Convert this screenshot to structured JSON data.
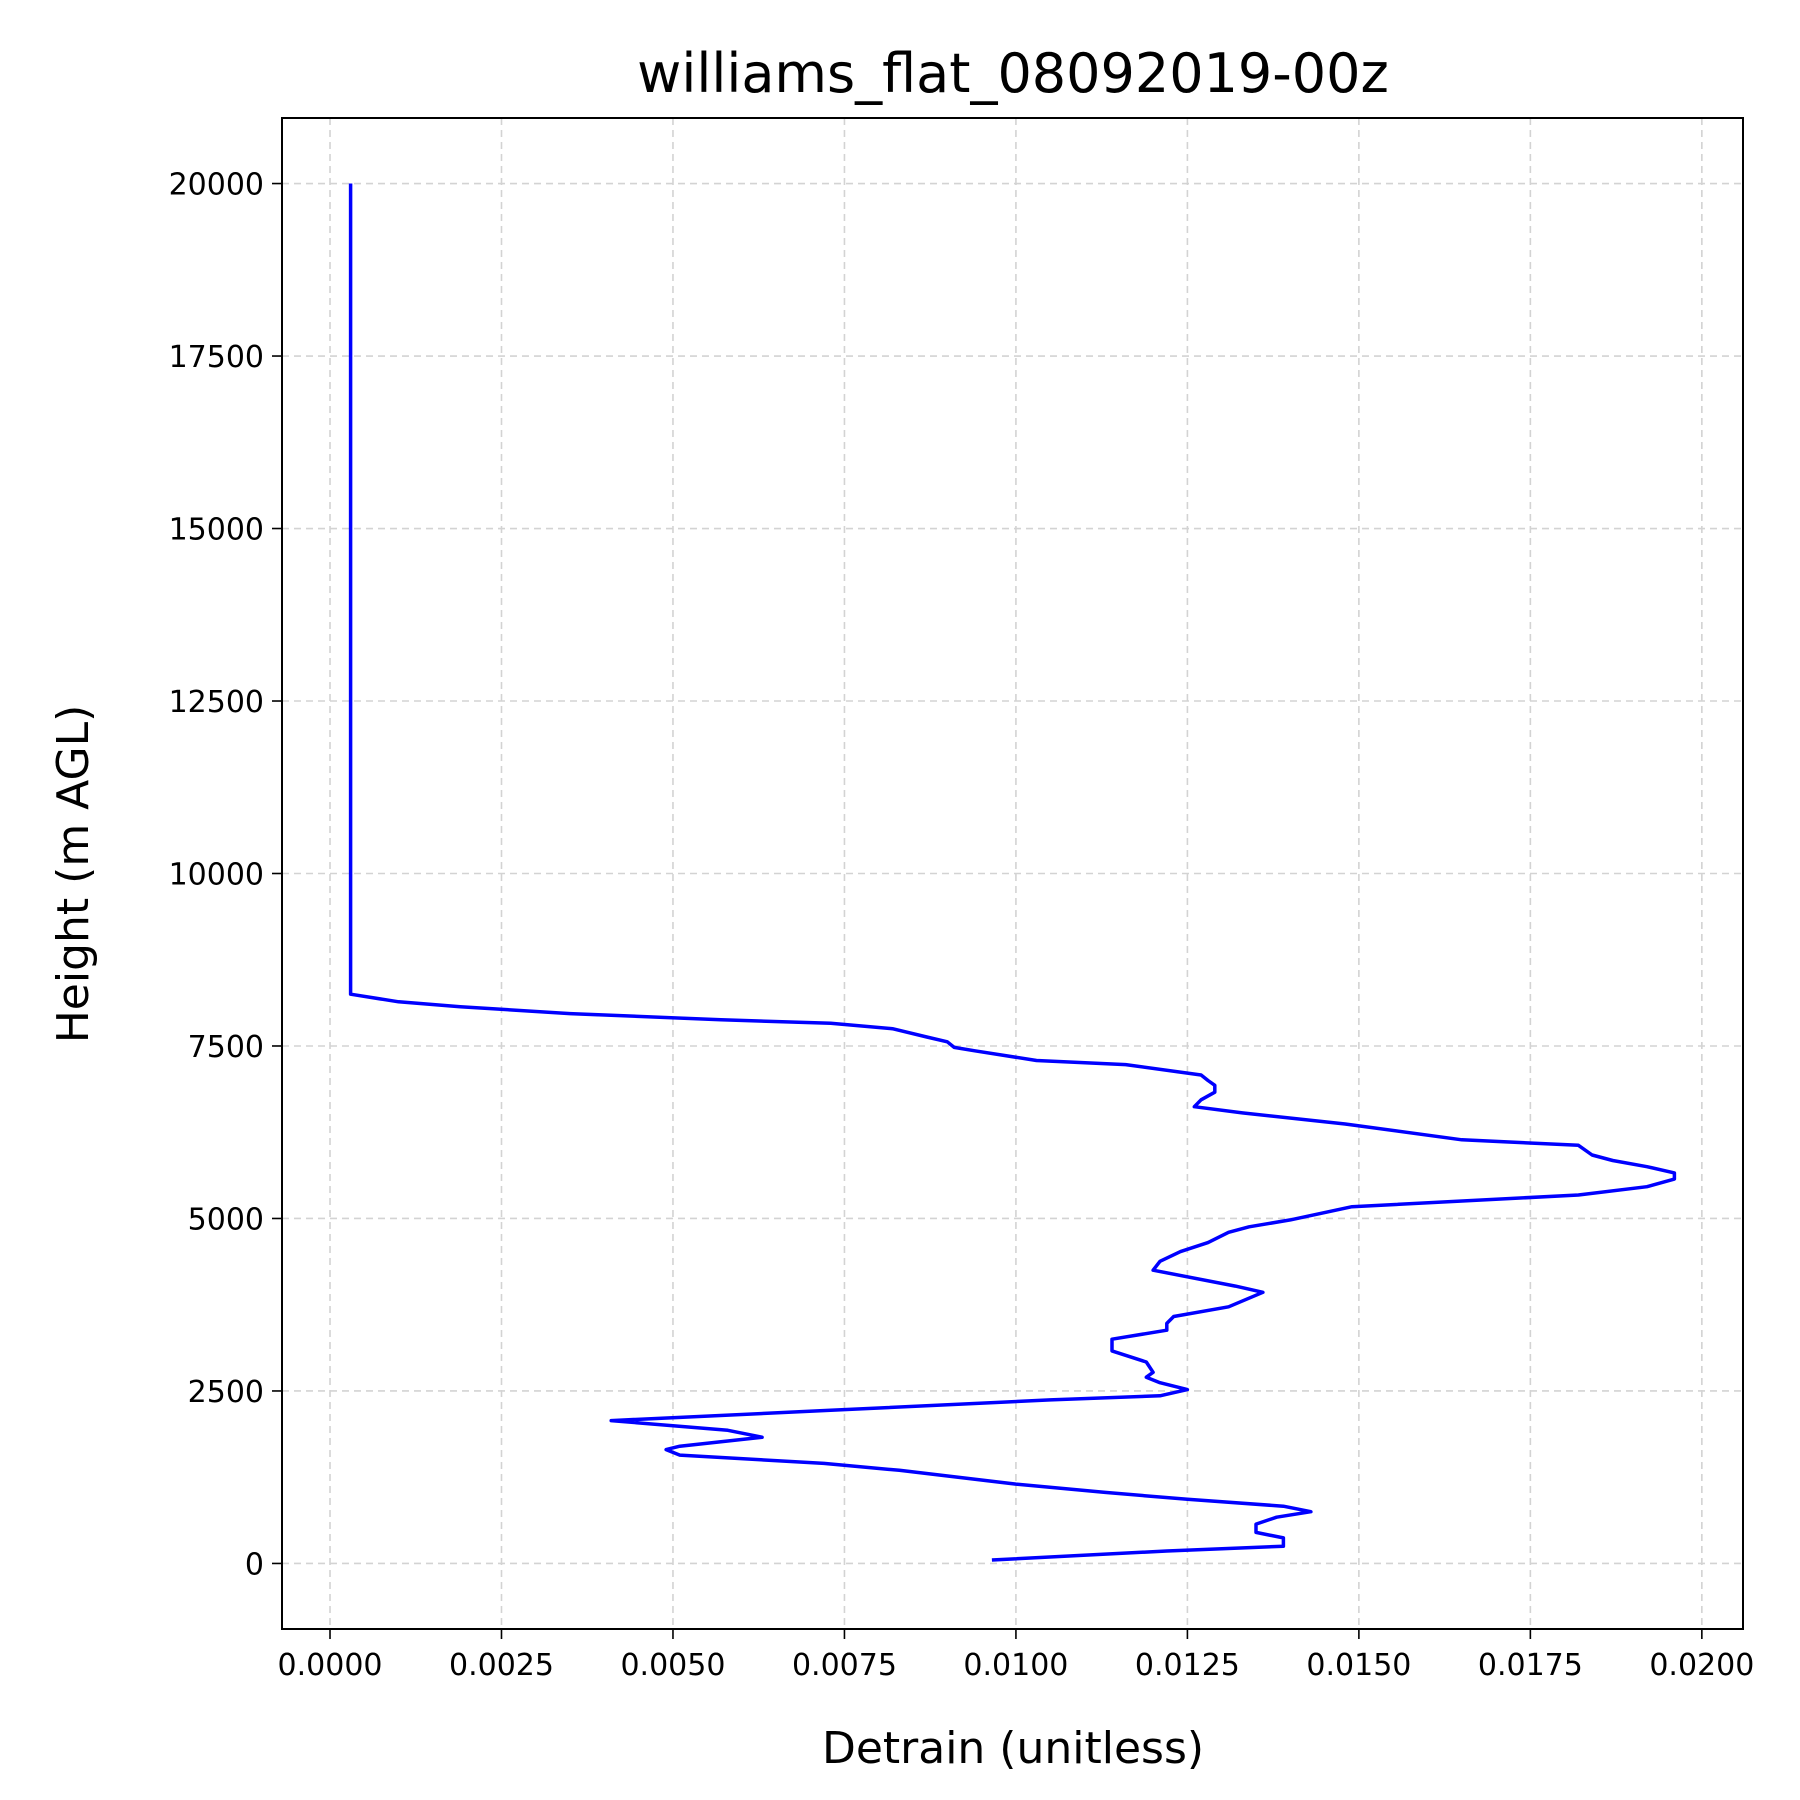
{
  "chart_data": {
    "type": "line",
    "title": "williams_flat_08092019-00z",
    "xlabel": "Detrain (unitless)",
    "ylabel": "Height (m AGL)",
    "xlim": [
      -0.0007,
      0.0206
    ],
    "ylim": [
      -950,
      20950
    ],
    "xticks": [
      0.0,
      0.0025,
      0.005,
      0.0075,
      0.01,
      0.0125,
      0.015,
      0.0175,
      0.02
    ],
    "xtick_labels": [
      "0.0000",
      "0.0025",
      "0.0050",
      "0.0075",
      "0.0100",
      "0.0125",
      "0.0150",
      "0.0175",
      "0.0200"
    ],
    "yticks": [
      0,
      2500,
      5000,
      7500,
      10000,
      12500,
      15000,
      17500,
      20000
    ],
    "ytick_labels": [
      "0",
      "2500",
      "5000",
      "7500",
      "10000",
      "12500",
      "15000",
      "17500",
      "20000"
    ],
    "grid": true,
    "color": "#0000ff",
    "series": [
      {
        "x": [
          0.00965,
          0.0122,
          0.0139,
          0.0139,
          0.0135,
          0.0135,
          0.0138,
          0.0143,
          0.0139,
          0.0125,
          0.0113,
          0.01,
          0.0083,
          0.0072,
          0.0051,
          0.0049,
          0.0051,
          0.0063,
          0.0058,
          0.0041,
          0.0073,
          0.0105,
          0.0121,
          0.0125,
          0.0121,
          0.0119,
          0.012,
          0.0119,
          0.0114,
          0.0114,
          0.0122,
          0.0122,
          0.0123,
          0.0131,
          0.0136,
          0.0132,
          0.012,
          0.0121,
          0.0124,
          0.0128,
          0.0131,
          0.0134,
          0.014,
          0.0149,
          0.0182,
          0.0192,
          0.0196,
          0.0196,
          0.0192,
          0.0187,
          0.0184,
          0.0182,
          0.0165,
          0.0148,
          0.0133,
          0.0126,
          0.0127,
          0.0129,
          0.0129,
          0.0128,
          0.0127,
          0.0116,
          0.0103,
          0.0094,
          0.0091,
          0.009,
          0.0087,
          0.0082,
          0.0073,
          0.0057,
          0.0035,
          0.0019,
          0.001,
          0.0003,
          0.0003,
          0.0003
        ],
        "y": [
          50,
          180,
          250,
          370,
          450,
          570,
          670,
          750,
          830,
          930,
          1030,
          1150,
          1350,
          1450,
          1570,
          1650,
          1700,
          1830,
          1930,
          2070,
          2220,
          2370,
          2430,
          2520,
          2620,
          2700,
          2770,
          2920,
          3080,
          3250,
          3380,
          3480,
          3580,
          3720,
          3930,
          4020,
          4250,
          4380,
          4520,
          4650,
          4800,
          4880,
          4980,
          5170,
          5340,
          5460,
          5570,
          5660,
          5750,
          5840,
          5920,
          6060,
          6140,
          6370,
          6530,
          6620,
          6720,
          6830,
          6930,
          7000,
          7080,
          7230,
          7290,
          7430,
          7480,
          7560,
          7630,
          7750,
          7830,
          7880,
          7970,
          8070,
          8140,
          8250,
          14000,
          20000
        ]
      }
    ]
  }
}
